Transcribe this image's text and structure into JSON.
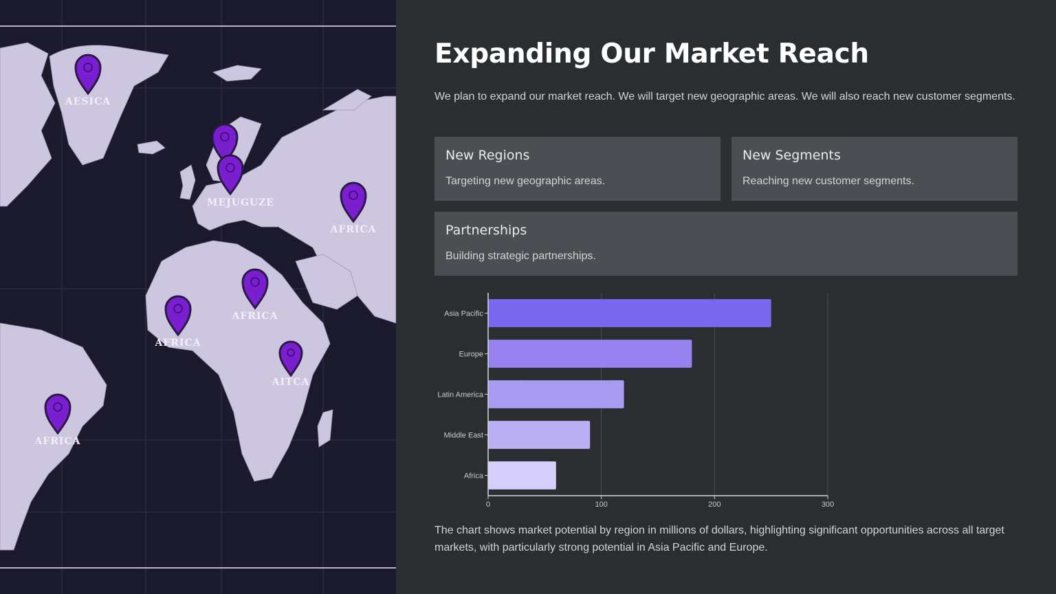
{
  "map": {
    "pins": [
      {
        "label": "AESICA"
      },
      {
        "label": ""
      },
      {
        "label": "MEJUGUZE"
      },
      {
        "label": "AFRICA"
      },
      {
        "label": "AFRICA"
      },
      {
        "label": "AFRICA"
      },
      {
        "label": "AITCA"
      },
      {
        "label": "AFRICA"
      }
    ],
    "pin_color": "#7a1fcf",
    "land_color": "#cdc6df",
    "ocean_color": "#1b1a2c"
  },
  "header": {
    "title": "Expanding Our Market Reach",
    "intro": "We plan to expand our market reach. We will target new geographic areas. We will also reach new customer segments."
  },
  "cards": {
    "regions": {
      "title": "New Regions",
      "text": "Targeting new geographic areas."
    },
    "segments": {
      "title": "New Segments",
      "text": "Reaching new customer segments."
    },
    "partnerships": {
      "title": "Partnerships",
      "text": "Building strategic partnerships."
    }
  },
  "chart_data": {
    "type": "bar",
    "orientation": "horizontal",
    "categories": [
      "Asia Pacific",
      "Europe",
      "Latin America",
      "Middle East",
      "Africa"
    ],
    "values": [
      250,
      180,
      120,
      90,
      60
    ],
    "colors": [
      "#7b68ee",
      "#9683f0",
      "#a99af2",
      "#bcb0f5",
      "#d6cffb"
    ],
    "xlim": [
      0,
      300
    ],
    "xticks": [
      "0",
      "100",
      "200",
      "300"
    ],
    "grid": true,
    "title": "",
    "xlabel": "",
    "ylabel": ""
  },
  "caption": "The chart shows market potential by region in millions of dollars, highlighting significant opportunities across all target markets, with particularly strong potential in Asia Pacific and Europe."
}
